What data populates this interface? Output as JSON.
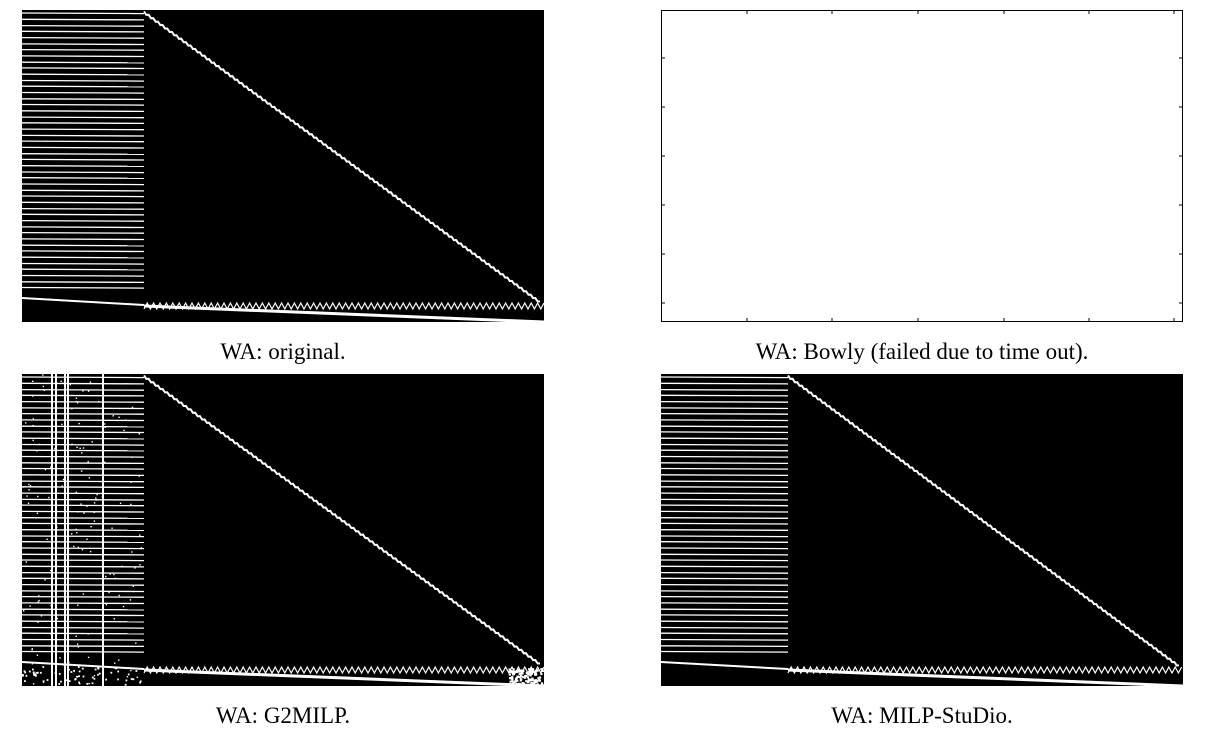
{
  "figure": {
    "colors": {
      "background": "#000000",
      "foreground": "#ffffff",
      "empty_panel": "#ffffff",
      "axis": "#000000"
    },
    "panels": [
      {
        "id": "original",
        "caption": "WA: original.",
        "kind": "matrix",
        "noise": false,
        "column_lines": false
      },
      {
        "id": "bowly",
        "caption": "WA: Bowly (failed due to time out).",
        "kind": "empty"
      },
      {
        "id": "g2milp",
        "caption": "WA: G2MILP.",
        "kind": "matrix",
        "noise": true,
        "column_lines": true
      },
      {
        "id": "milp-studio",
        "caption": "WA: MILP-StuDio.",
        "kind": "matrix",
        "noise": false,
        "column_lines": false
      }
    ]
  }
}
